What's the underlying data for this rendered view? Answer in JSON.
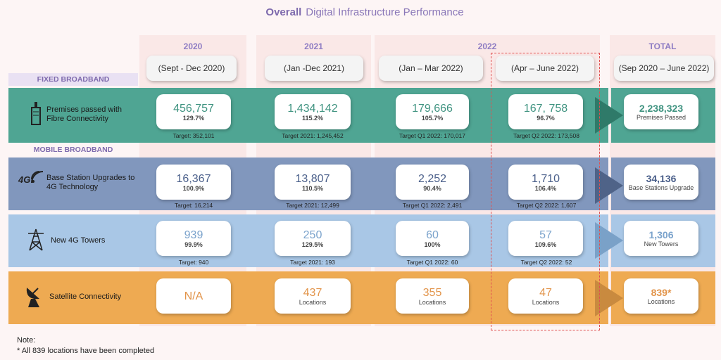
{
  "title": {
    "bold": "Overall",
    "rest": "Digital Infrastructure Performance"
  },
  "years": [
    "2020",
    "2021",
    "2022",
    "TOTAL"
  ],
  "periods": [
    "(Sept  - Dec 2020)",
    "(Jan -Dec 2021)",
    "(Jan – Mar 2022)",
    "(Apr – June 2022)",
    "(Sep 2020 – June 2022)"
  ],
  "sections": {
    "fixed": "FIXED BROADBAND",
    "mobile": "MOBILE BROADBAND"
  },
  "rows": [
    {
      "label": "Premises passed with Fibre Connectivity",
      "cells": [
        {
          "value": "456,757",
          "pct": "129.7%",
          "target": "Target: 352,101"
        },
        {
          "value": "1,434,142",
          "pct": "115.2%",
          "target": "Target 2021: 1,245,452"
        },
        {
          "value": "179,666",
          "pct": "105.7%",
          "target": "Target Q1 2022: 170,017"
        },
        {
          "value": "167, 758",
          "pct": "96.7%",
          "target": "Target Q2 2022: 173,508"
        }
      ],
      "total": {
        "value": "2,238,323",
        "caption": "Premises Passed"
      }
    },
    {
      "label": "Base Station Upgrades to 4G Technology",
      "icon_text": "4G",
      "cells": [
        {
          "value": "16,367",
          "pct": "100.9%",
          "target": "Target: 16,214"
        },
        {
          "value": "13,807",
          "pct": "110.5%",
          "target": "Target 2021: 12,499"
        },
        {
          "value": "2,252",
          "pct": "90.4%",
          "target": "Target Q1 2022: 2,491"
        },
        {
          "value": "1,710",
          "pct": "106.4%",
          "target": "Target Q2 2022: 1,607"
        }
      ],
      "total": {
        "value": "34,136",
        "caption": "Base Stations Upgrade"
      }
    },
    {
      "label": "New 4G Towers",
      "cells": [
        {
          "value": "939",
          "pct": "99.9%",
          "target": "Target: 940"
        },
        {
          "value": "250",
          "pct": "129.5%",
          "target": "Target 2021: 193"
        },
        {
          "value": "60",
          "pct": "100%",
          "target": "Target Q1 2022: 60"
        },
        {
          "value": "57",
          "pct": "109.6%",
          "target": "Target Q2 2022: 52"
        }
      ],
      "total": {
        "value": "1,306",
        "caption": "New Towers"
      }
    },
    {
      "label": "Satellite Connectivity",
      "cells": [
        {
          "value": "N/A",
          "caption": ""
        },
        {
          "value": "437",
          "caption": "Locations"
        },
        {
          "value": "355",
          "caption": "Locations"
        },
        {
          "value": "47",
          "caption": "Locations"
        }
      ],
      "total": {
        "value": "839*",
        "caption": "Locations"
      }
    }
  ],
  "note": {
    "heading": "Note:",
    "text": "* All 839 locations have been completed"
  },
  "colors": {
    "fibre": "#4fa593",
    "fibre_val": "#3f9380",
    "base": "#8197bd",
    "base_val": "#4a5f8a",
    "towers": "#a9c7e6",
    "towers_val": "#7ba3cc",
    "satellite": "#eeaa52",
    "satellite_val": "#e2944a"
  }
}
